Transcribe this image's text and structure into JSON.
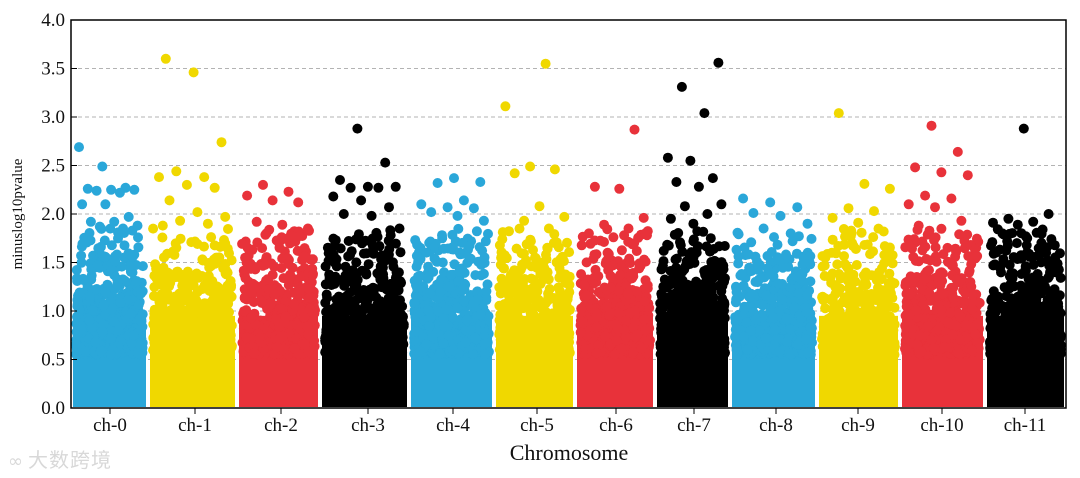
{
  "chart_data": {
    "type": "scatter",
    "title": "",
    "xlabel": "Chromosome",
    "ylabel": "minuslog10pvalue",
    "ylim": [
      0,
      4.0
    ],
    "yticks": [
      "0.0",
      "0.5",
      "1.0",
      "1.5",
      "2.0",
      "2.5",
      "3.0",
      "3.5",
      "4.0"
    ],
    "grid": "horizontal dashed",
    "categories": [
      "ch-0",
      "ch-1",
      "ch-2",
      "ch-3",
      "ch-4",
      "ch-5",
      "ch-6",
      "ch-7",
      "ch-8",
      "ch-9",
      "ch-10",
      "ch-11"
    ],
    "colors": [
      "#2aa7d9",
      "#f0d800",
      "#e8323a",
      "#000000",
      "#2aa7d9",
      "#f0d800",
      "#e8323a",
      "#000000",
      "#2aa7d9",
      "#f0d800",
      "#e8323a",
      "#000000"
    ],
    "series": [
      {
        "name": "ch-0",
        "n_points": 4000,
        "max": 2.69,
        "top_points": [
          2.69,
          2.49,
          2.27,
          2.26,
          2.25,
          2.25,
          2.24,
          2.22,
          2.1,
          2.1,
          1.97,
          1.92,
          1.92,
          1.88,
          1.87,
          1.85
        ]
      },
      {
        "name": "ch-1",
        "n_points": 4000,
        "max": 3.6,
        "top_points": [
          3.6,
          3.46,
          2.74,
          2.44,
          2.38,
          2.38,
          2.3,
          2.27,
          2.14,
          2.02,
          1.97,
          1.93,
          1.9,
          1.88
        ]
      },
      {
        "name": "ch-2",
        "n_points": 4000,
        "max": 2.3,
        "top_points": [
          2.3,
          2.23,
          2.19,
          2.14,
          2.12,
          1.92,
          1.89,
          1.85,
          1.8,
          1.77
        ]
      },
      {
        "name": "ch-3",
        "n_points": 4000,
        "max": 2.88,
        "top_points": [
          2.88,
          2.53,
          2.35,
          2.28,
          2.28,
          2.27,
          2.27,
          2.18,
          2.14,
          2.07,
          2.0,
          1.98,
          1.85
        ]
      },
      {
        "name": "ch-4",
        "n_points": 4000,
        "max": 2.37,
        "top_points": [
          2.37,
          2.33,
          2.32,
          2.14,
          2.1,
          2.07,
          2.06,
          2.02,
          1.98,
          1.93
        ]
      },
      {
        "name": "ch-5",
        "n_points": 4000,
        "max": 3.55,
        "top_points": [
          3.55,
          3.11,
          2.49,
          2.46,
          2.42,
          2.08,
          1.97,
          1.93,
          1.85
        ]
      },
      {
        "name": "ch-6",
        "n_points": 4000,
        "max": 2.87,
        "top_points": [
          2.87,
          2.28,
          2.26,
          1.96,
          1.89,
          1.85,
          1.8,
          1.76
        ]
      },
      {
        "name": "ch-7",
        "n_points": 4000,
        "max": 3.56,
        "top_points": [
          3.56,
          3.31,
          3.04,
          2.58,
          2.55,
          2.37,
          2.33,
          2.28,
          2.1,
          2.08,
          2.0,
          1.95,
          1.9
        ]
      },
      {
        "name": "ch-8",
        "n_points": 4000,
        "max": 2.16,
        "top_points": [
          2.16,
          2.12,
          2.07,
          2.01,
          1.98,
          1.9,
          1.85,
          1.8
        ]
      },
      {
        "name": "ch-9",
        "n_points": 4000,
        "max": 3.04,
        "top_points": [
          3.04,
          2.31,
          2.26,
          2.06,
          2.03,
          1.96,
          1.91,
          1.82
        ]
      },
      {
        "name": "ch-10",
        "n_points": 4000,
        "max": 2.91,
        "top_points": [
          2.91,
          2.64,
          2.48,
          2.43,
          2.4,
          2.19,
          2.16,
          2.1,
          2.07,
          1.93,
          1.88
        ]
      },
      {
        "name": "ch-11",
        "n_points": 4000,
        "max": 2.88,
        "top_points": [
          2.88,
          2.0,
          1.95,
          1.92,
          1.91,
          1.89,
          1.84,
          1.8,
          1.75
        ]
      }
    ]
  },
  "watermark": {
    "icon": "∞",
    "text": "大数跨境"
  }
}
